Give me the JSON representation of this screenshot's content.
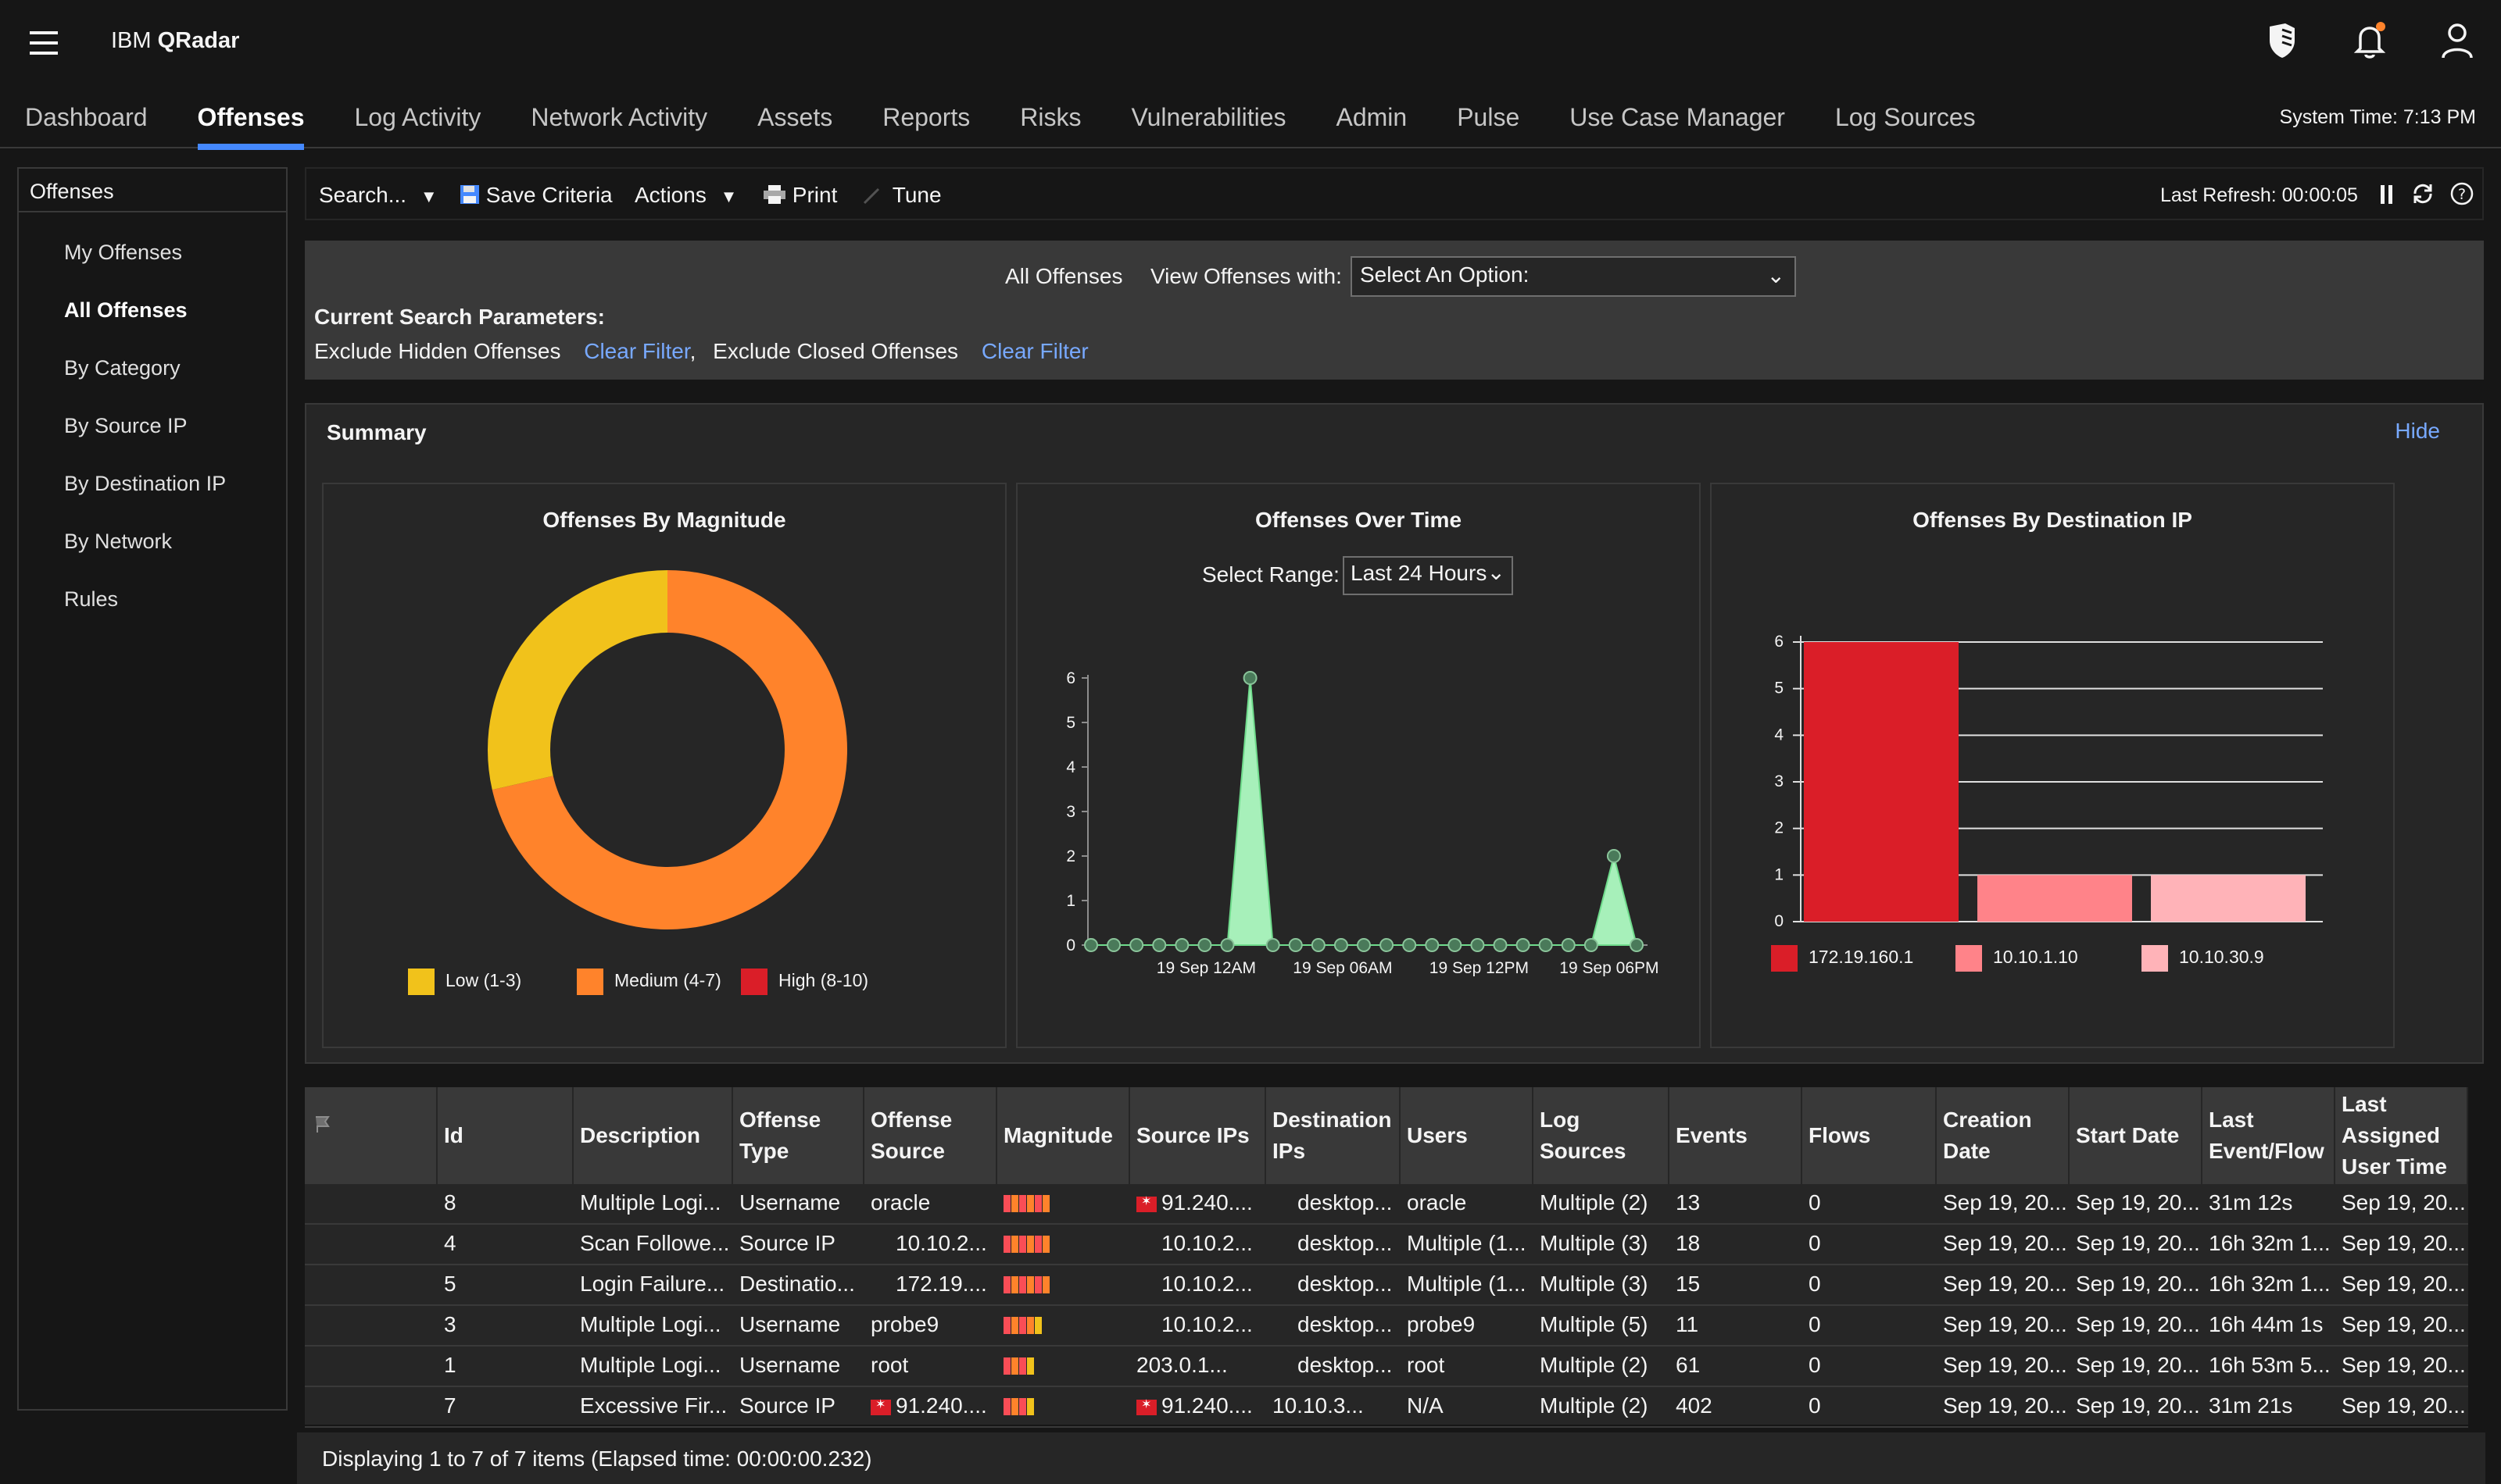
{
  "app": {
    "brand_prefix": "IBM ",
    "brand_name": "QRadar",
    "system_time": "System Time: 7:13 PM"
  },
  "nav": {
    "tabs": [
      "Dashboard",
      "Offenses",
      "Log Activity",
      "Network Activity",
      "Assets",
      "Reports",
      "Risks",
      "Vulnerabilities",
      "Admin",
      "Pulse",
      "Use Case Manager",
      "Log Sources"
    ],
    "active": "Offenses"
  },
  "sidebar": {
    "title": "Offenses",
    "items": [
      "My Offenses",
      "All Offenses",
      "By Category",
      "By Source IP",
      "By Destination IP",
      "By Network",
      "Rules"
    ],
    "active": "All Offenses"
  },
  "toolbar": {
    "search": "Search...",
    "save_criteria": "Save Criteria",
    "actions": "Actions",
    "print": "Print",
    "tune": "Tune",
    "last_refresh": "Last Refresh: 00:00:05"
  },
  "filter": {
    "title": "All Offenses",
    "view_with": "View Offenses with:",
    "select_value": "Select An Option:",
    "params_label": "Current Search Parameters:",
    "param1": "Exclude Hidden Offenses",
    "clear1": "Clear Filter",
    "sep": ",",
    "param2": "Exclude Closed Offenses",
    "clear2": "Clear Filter"
  },
  "summary": {
    "title": "Summary",
    "hide": "Hide"
  },
  "chart_data": [
    {
      "type": "pie",
      "title": "Offenses By Magnitude",
      "donut": true,
      "labels": [
        "Low (1-3)",
        "Medium (4-7)",
        "High (8-10)"
      ],
      "values": [
        2,
        5,
        0
      ],
      "colors": [
        "#f1c21b",
        "#ff832b",
        "#da1e28"
      ]
    },
    {
      "type": "area",
      "title": "Offenses Over Time",
      "range_label": "Select Range:",
      "range_value": "Last 24 Hours",
      "x_ticks": [
        "19 Sep 12AM",
        "19 Sep 06AM",
        "19 Sep 12PM",
        "19 Sep 06PM"
      ],
      "y_ticks": [
        0,
        1,
        2,
        3,
        4,
        5,
        6
      ],
      "ylim": [
        0,
        6
      ],
      "values": [
        0,
        0,
        0,
        0,
        0,
        0,
        0,
        6,
        0,
        0,
        0,
        0,
        0,
        0,
        0,
        0,
        0,
        0,
        0,
        0,
        0,
        0,
        0,
        2,
        0
      ],
      "color": "#a7f0ba"
    },
    {
      "type": "bar",
      "title": "Offenses By Destination IP",
      "categories": [
        "172.19.160.1",
        "10.10.1.10",
        "10.10.30.9"
      ],
      "values": [
        6,
        1,
        1
      ],
      "ylim": [
        0,
        6
      ],
      "y_ticks": [
        0,
        1,
        2,
        3,
        4,
        5,
        6
      ],
      "colors": [
        "#da1e28",
        "#ff8389",
        "#ffb3b8"
      ]
    }
  ],
  "table": {
    "headers": [
      "Id",
      "Description",
      "Offense Type",
      "Offense Source",
      "Magnitude",
      "Source IPs",
      "Destination IPs",
      "Users",
      "Log Sources",
      "Events",
      "Flows",
      "Creation Date",
      "Start Date",
      "Last Event/Flow",
      "Last Assigned User Time"
    ],
    "rows": [
      {
        "id": "8",
        "desc": "Multiple Logi...",
        "type": "Username",
        "source": "oracle",
        "magnitude": 0.8,
        "src_flag": true,
        "src_ips": "91.240....",
        "dst": "desktop...",
        "users": "oracle",
        "logs": "Multiple (2)",
        "events": "13",
        "flows": "0",
        "created": "Sep 19, 20...",
        "start": "Sep 19, 20...",
        "last": "31m 12s",
        "assigned": "Sep 19, 20..."
      },
      {
        "id": "4",
        "desc": "Scan Followe...",
        "type": "Source IP",
        "source": "10.10.2...",
        "magnitude": 0.8,
        "src_flag": false,
        "src_ips": "10.10.2...",
        "dst": "desktop...",
        "users": "Multiple (1...",
        "logs": "Multiple (3)",
        "events": "18",
        "flows": "0",
        "created": "Sep 19, 20...",
        "start": "Sep 19, 20...",
        "last": "16h 32m 1...",
        "assigned": "Sep 19, 20..."
      },
      {
        "id": "5",
        "desc": "Login Failure...",
        "type": "Destinatio...",
        "source": "172.19....",
        "magnitude": 0.8,
        "src_flag": false,
        "src_ips": "10.10.2...",
        "dst": "desktop...",
        "users": "Multiple (1...",
        "logs": "Multiple (3)",
        "events": "15",
        "flows": "0",
        "created": "Sep 19, 20...",
        "start": "Sep 19, 20...",
        "last": "16h 32m 1...",
        "assigned": "Sep 19, 20..."
      },
      {
        "id": "3",
        "desc": "Multiple Logi...",
        "type": "Username",
        "source": "probe9",
        "magnitude": 0.6,
        "src_flag": false,
        "src_ips": "10.10.2...",
        "dst": "desktop...",
        "users": "probe9",
        "logs": "Multiple (5)",
        "events": "11",
        "flows": "0",
        "created": "Sep 19, 20...",
        "start": "Sep 19, 20...",
        "last": "16h 44m 1s",
        "assigned": "Sep 19, 20..."
      },
      {
        "id": "1",
        "desc": "Multiple Logi...",
        "type": "Username",
        "source": "root",
        "magnitude": 0.5,
        "src_flag": false,
        "src_ips": "203.0.1...",
        "dst": "desktop...",
        "users": "root",
        "logs": "Multiple (2)",
        "events": "61",
        "flows": "0",
        "created": "Sep 19, 20...",
        "start": "Sep 19, 20...",
        "last": "16h 53m 5...",
        "assigned": "Sep 19, 20..."
      },
      {
        "id": "7",
        "desc": "Excessive Fir...",
        "type": "Source IP",
        "source": "91.240....",
        "source_flag": true,
        "magnitude": 0.5,
        "src_flag": true,
        "src_ips": "91.240....",
        "dst": "10.10.3...",
        "users": "N/A",
        "logs": "Multiple (2)",
        "events": "402",
        "flows": "0",
        "created": "Sep 19, 20...",
        "start": "Sep 19, 20...",
        "last": "31m 21s",
        "assigned": "Sep 19, 20..."
      }
    ]
  },
  "footer": {
    "status": "Displaying 1 to 7 of 7 items (Elapsed time: 00:00:00.232)"
  }
}
